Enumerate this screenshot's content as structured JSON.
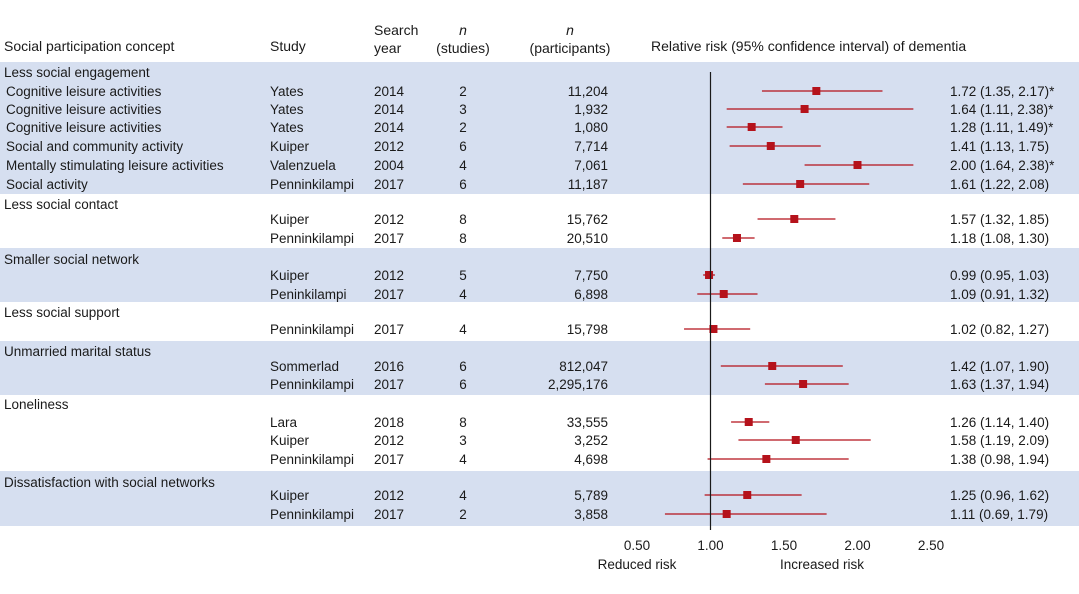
{
  "colors": {
    "band": "#d6dff0",
    "marker": "#b5121b",
    "axis": "#1a1a1a"
  },
  "headers": {
    "concept": "Social participation concept",
    "study": "Study",
    "year_line1": "Search",
    "year_line2": "year",
    "studies_line1": "n",
    "studies_line2": "(studies)",
    "participants_line1": "n",
    "participants_line2": "(participants)",
    "effect": "Relative risk (95% confidence interval) of dementia"
  },
  "chart_data": {
    "type": "forest",
    "xlim": [
      0.5,
      2.5
    ],
    "ticks": [
      "0.50",
      "1.00",
      "1.50",
      "2.00",
      "2.50"
    ],
    "tick_values": [
      0.5,
      1.0,
      1.5,
      2.0,
      2.5
    ],
    "reference_value": 1.0,
    "xlabel_left": "Reduced risk",
    "xlabel_right": "Increased risk",
    "groups": [
      {
        "concept": "Less social engagement",
        "shaded": true,
        "rows": [
          {
            "label": "Cognitive leisure activities",
            "study": "Yates",
            "year": "2014",
            "n_studies": "2",
            "n_participants": "11,204",
            "rr": 1.72,
            "lo": 1.35,
            "hi": 2.17,
            "text": "1.72 (1.35, 2.17)*"
          },
          {
            "label": "Cognitive leisure activities",
            "study": "Yates",
            "year": "2014",
            "n_studies": "3",
            "n_participants": "1,932",
            "rr": 1.64,
            "lo": 1.11,
            "hi": 2.38,
            "text": "1.64 (1.11, 2.38)*"
          },
          {
            "label": "Cognitive leisure activities",
            "study": "Yates",
            "year": "2014",
            "n_studies": "2",
            "n_participants": "1,080",
            "rr": 1.28,
            "lo": 1.11,
            "hi": 1.49,
            "text": "1.28 (1.11, 1.49)*"
          },
          {
            "label": "Social and community activity",
            "study": "Kuiper",
            "year": "2012",
            "n_studies": "6",
            "n_participants": "7,714",
            "rr": 1.41,
            "lo": 1.13,
            "hi": 1.75,
            "text": "1.41 (1.13, 1.75)"
          },
          {
            "label": "Mentally stimulating leisure activities",
            "study": "Valenzuela",
            "year": "2004",
            "n_studies": "4",
            "n_participants": "7,061",
            "rr": 2.0,
            "lo": 1.64,
            "hi": 2.38,
            "text": "2.00 (1.64, 2.38)*"
          },
          {
            "label": "Social activity",
            "study": "Penninkilampi",
            "year": "2017",
            "n_studies": "6",
            "n_participants": "11,187",
            "rr": 1.61,
            "lo": 1.22,
            "hi": 2.08,
            "text": "1.61 (1.22, 2.08)"
          }
        ]
      },
      {
        "concept": "Less social contact",
        "shaded": false,
        "rows": [
          {
            "label": "",
            "study": "Kuiper",
            "year": "2012",
            "n_studies": "8",
            "n_participants": "15,762",
            "rr": 1.57,
            "lo": 1.32,
            "hi": 1.85,
            "text": "1.57 (1.32, 1.85)"
          },
          {
            "label": "",
            "study": "Penninkilampi",
            "year": "2017",
            "n_studies": "8",
            "n_participants": "20,510",
            "rr": 1.18,
            "lo": 1.08,
            "hi": 1.3,
            "text": "1.18 (1.08, 1.30)"
          }
        ]
      },
      {
        "concept": "Smaller social network",
        "shaded": true,
        "rows": [
          {
            "label": "",
            "study": "Kuiper",
            "year": "2012",
            "n_studies": "5",
            "n_participants": "7,750",
            "rr": 0.99,
            "lo": 0.95,
            "hi": 1.03,
            "text": "0.99 (0.95, 1.03)"
          },
          {
            "label": "",
            "study": "Peninkilampi",
            "year": "2017",
            "n_studies": "4",
            "n_participants": "6,898",
            "rr": 1.09,
            "lo": 0.91,
            "hi": 1.32,
            "text": "1.09 (0.91, 1.32)"
          }
        ]
      },
      {
        "concept": "Less social support",
        "shaded": false,
        "rows": [
          {
            "label": "",
            "study": "Penninkilampi",
            "year": "2017",
            "n_studies": "4",
            "n_participants": "15,798",
            "rr": 1.02,
            "lo": 0.82,
            "hi": 1.27,
            "text": "1.02 (0.82, 1.27)"
          }
        ]
      },
      {
        "concept": "Unmarried marital status",
        "shaded": true,
        "rows": [
          {
            "label": "",
            "study": "Sommerlad",
            "year": "2016",
            "n_studies": "6",
            "n_participants": "812,047",
            "rr": 1.42,
            "lo": 1.07,
            "hi": 1.9,
            "text": "1.42 (1.07, 1.90)"
          },
          {
            "label": "",
            "study": "Penninkilampi",
            "year": "2017",
            "n_studies": "6",
            "n_participants": "2,295,176",
            "rr": 1.63,
            "lo": 1.37,
            "hi": 1.94,
            "text": "1.63 (1.37, 1.94)"
          }
        ]
      },
      {
        "concept": "Loneliness",
        "shaded": false,
        "rows": [
          {
            "label": "",
            "study": "Lara",
            "year": "2018",
            "n_studies": "8",
            "n_participants": "33,555",
            "rr": 1.26,
            "lo": 1.14,
            "hi": 1.4,
            "text": "1.26 (1.14, 1.40)"
          },
          {
            "label": "",
            "study": "Kuiper",
            "year": "2012",
            "n_studies": "3",
            "n_participants": "3,252",
            "rr": 1.58,
            "lo": 1.19,
            "hi": 2.09,
            "text": "1.58 (1.19, 2.09)"
          },
          {
            "label": "",
            "study": "Penninkilampi",
            "year": "2017",
            "n_studies": "4",
            "n_participants": "4,698",
            "rr": 1.38,
            "lo": 0.98,
            "hi": 1.94,
            "text": "1.38 (0.98, 1.94)"
          }
        ]
      },
      {
        "concept": "Dissatisfaction with social networks",
        "shaded": true,
        "rows": [
          {
            "label": "",
            "study": "Kuiper",
            "year": "2012",
            "n_studies": "4",
            "n_participants": "5,789",
            "rr": 1.25,
            "lo": 0.96,
            "hi": 1.62,
            "text": "1.25 (0.96, 1.62)"
          },
          {
            "label": "",
            "study": "Penninkilampi",
            "year": "2017",
            "n_studies": "2",
            "n_participants": "3,858",
            "rr": 1.11,
            "lo": 0.69,
            "hi": 1.79,
            "text": "1.11 (0.69, 1.79)"
          }
        ]
      }
    ]
  }
}
